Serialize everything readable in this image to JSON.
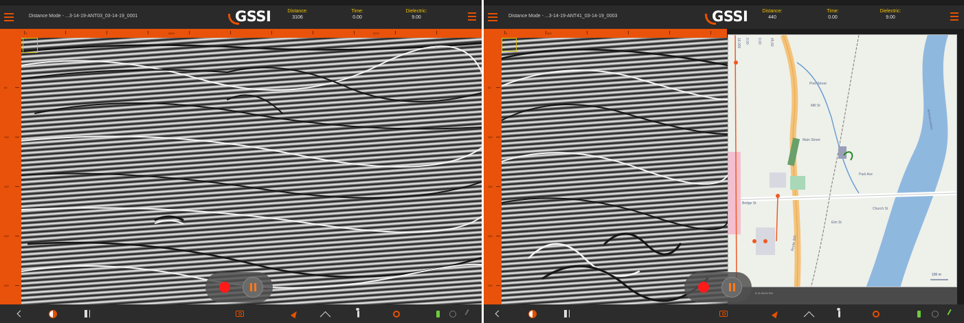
{
  "colors": {
    "accent": "#e8520a",
    "label_yellow": "#f5c400",
    "record_red": "#ff1a1a",
    "battery_green": "#6ccc3c"
  },
  "left": {
    "mode_text": "Distance Mode - ...3-14-19-ANT03_03-14-19_0001",
    "logo": "GSSI",
    "distance": {
      "label": "Distance:",
      "value": "3106"
    },
    "time": {
      "label": "Time:",
      "value": "0.00"
    },
    "dielectric": {
      "label": "Dielectric:",
      "value": "9.00"
    },
    "ruler_labels": [
      "0",
      "3000",
      "3072"
    ],
    "depth_labels": [
      "50",
      "100",
      "150",
      "200",
      "250"
    ]
  },
  "right": {
    "mode_text": "Distance Mode - ...3-14-19-ANT41_03-14-19_0003",
    "logo": "GSSI",
    "distance": {
      "label": "Distance:",
      "value": "440"
    },
    "time": {
      "label": "Time:",
      "value": "0.00"
    },
    "dielectric": {
      "label": "Dielectric:",
      "value": "9.00"
    },
    "ruler_labels": [
      "0",
      "400"
    ],
    "depth_labels": [
      "50",
      "100",
      "150",
      "200",
      "250"
    ],
    "map": {
      "coords": [
        "16.000",
        "0.00",
        "0.00",
        "45.60"
      ],
      "labels": [
        "Pine Street",
        "Main Street",
        "Bridge St",
        "Ammonoosuc",
        "Route 302",
        "Elm St",
        "Park Ave",
        "Mill St",
        "Church St"
      ],
      "scale": "100 m",
      "footer": "8 11:05:04 EM"
    }
  },
  "toolbar": {
    "icons": [
      "back-icon",
      "contrast-icon",
      "mark-icon",
      "camera-icon",
      "navigate-icon",
      "lambda-icon",
      "walk-icon",
      "target-icon",
      "battery-icon",
      "gps-icon",
      "signal-icon"
    ]
  }
}
